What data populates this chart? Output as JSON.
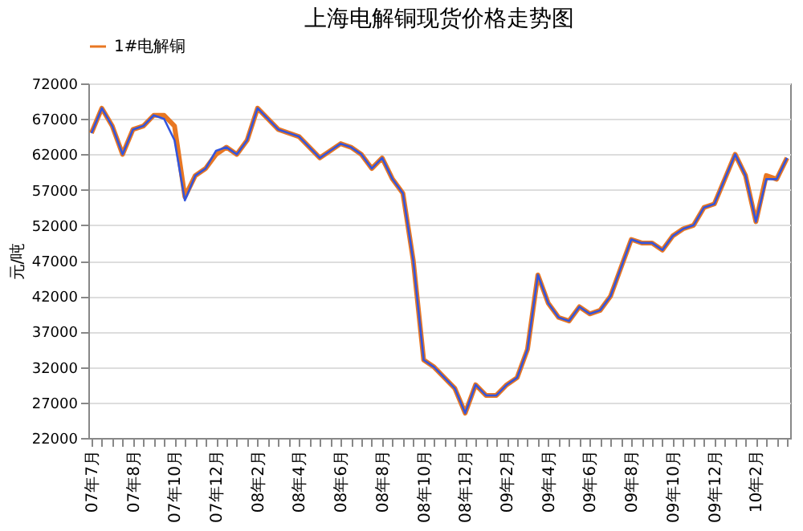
{
  "chart_data": {
    "type": "line",
    "title": "上海电解铜现货价格走势图",
    "ylabel": "元/吨",
    "categories": [
      "07年7月",
      null,
      null,
      null,
      "07年8月",
      null,
      null,
      null,
      "07年10月",
      null,
      null,
      null,
      "07年12月",
      null,
      null,
      null,
      "08年2月",
      null,
      null,
      null,
      "08年4月",
      null,
      null,
      null,
      "08年6月",
      null,
      null,
      null,
      "08年8月",
      null,
      null,
      null,
      "08年10月",
      null,
      null,
      null,
      "08年12月",
      null,
      null,
      null,
      "09年2月",
      null,
      null,
      null,
      "09年4月",
      null,
      null,
      null,
      "09年6月",
      null,
      null,
      null,
      "09年8月",
      null,
      null,
      null,
      "09年10月",
      null,
      null,
      null,
      "09年12月",
      null,
      null,
      null,
      "10年2月",
      null,
      null,
      null
    ],
    "series": [
      {
        "name": "1#电解铜",
        "color": "#e87722",
        "values": [
          65000,
          68500,
          66000,
          62000,
          65500,
          66000,
          67500,
          67500,
          66000,
          56000,
          59000,
          60000,
          62000,
          63000,
          62000,
          64000,
          68500,
          67000,
          65500,
          65000,
          64500,
          63000,
          61500,
          62500,
          63500,
          63000,
          62000,
          60000,
          61500,
          58500,
          56500,
          47000,
          33000,
          32000,
          30500,
          29000,
          25500,
          29500,
          28000,
          28000,
          29500,
          30500,
          34500,
          45000,
          41000,
          39000,
          38500,
          40500,
          39500,
          40000,
          42000,
          46000,
          50000,
          49500,
          49500,
          48500,
          50500,
          51500,
          52000,
          54500,
          55000,
          58500,
          62000,
          59000,
          52500,
          59000,
          58500,
          61500
        ]
      },
      {
        "color": "#3355dd",
        "values": [
          65000,
          68500,
          66000,
          62000,
          65500,
          66000,
          67500,
          67000,
          64000,
          55500,
          59000,
          60000,
          62500,
          63000,
          62000,
          64000,
          68500,
          67000,
          65500,
          65000,
          64500,
          63000,
          61500,
          62500,
          63500,
          63000,
          62000,
          60000,
          61500,
          58500,
          56500,
          47000,
          33000,
          32000,
          30500,
          29000,
          25500,
          29500,
          28000,
          28000,
          29500,
          30500,
          34500,
          45000,
          41000,
          39000,
          38500,
          40500,
          39500,
          40000,
          42000,
          46000,
          50000,
          49500,
          49500,
          48500,
          50500,
          51500,
          52000,
          54500,
          55000,
          58500,
          62000,
          59000,
          52500,
          58500,
          58500,
          61500
        ]
      }
    ],
    "ylim": [
      22000,
      72000
    ],
    "yticks": [
      22000,
      27000,
      32000,
      37000,
      42000,
      47000,
      52000,
      57000,
      62000,
      67000,
      72000
    ],
    "grid": "y",
    "legend": "top",
    "marker": "none",
    "line_style": "solid"
  }
}
